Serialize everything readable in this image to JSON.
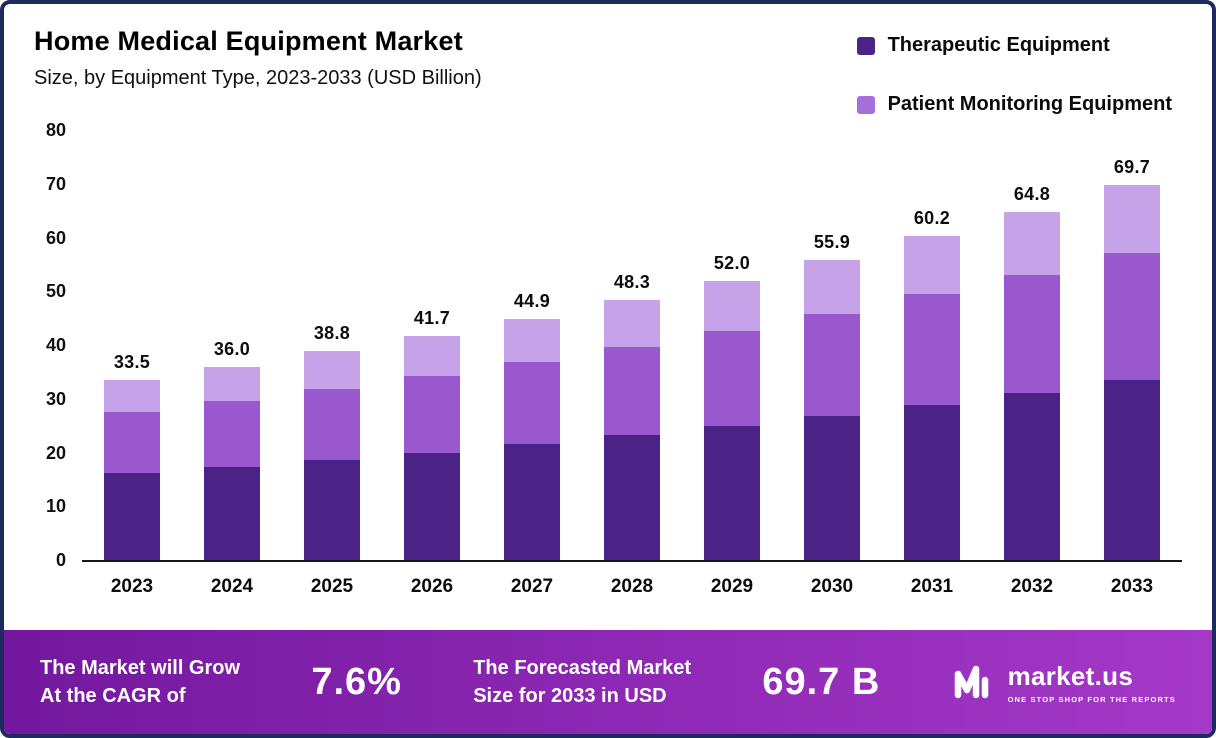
{
  "header": {
    "title": "Home Medical Equipment Market",
    "subtitle": "Size, by Equipment Type, 2023-2033 (USD Billion)"
  },
  "legend": [
    {
      "label": "Therapeutic Equipment",
      "color": "#4b2286"
    },
    {
      "label": "Patient Monitoring Equipment",
      "color": "#a76fdb"
    }
  ],
  "chart_data": {
    "type": "bar",
    "subtype": "stacked",
    "categories": [
      "2023",
      "2024",
      "2025",
      "2026",
      "2027",
      "2028",
      "2029",
      "2030",
      "2031",
      "2032",
      "2033"
    ],
    "totals": [
      "33.5",
      "36.0",
      "38.8",
      "41.7",
      "44.9",
      "48.3",
      "52.0",
      "55.9",
      "60.2",
      "64.8",
      "69.7"
    ],
    "series": [
      {
        "name": "Therapeutic Equipment",
        "color": "#4b2286",
        "values": [
          16.1,
          17.3,
          18.6,
          20.0,
          21.6,
          23.2,
          25.0,
          26.8,
          28.9,
          31.1,
          33.5
        ]
      },
      {
        "name": "Patient Monitoring Equipment",
        "color": "#9a58cf",
        "values": [
          11.4,
          12.2,
          13.2,
          14.2,
          15.3,
          16.4,
          17.7,
          19.0,
          20.5,
          22.0,
          23.7
        ]
      },
      {
        "name": "",
        "color": "#c6a3e8",
        "values": [
          6.0,
          6.5,
          7.0,
          7.5,
          8.0,
          8.7,
          9.3,
          10.1,
          10.8,
          11.7,
          12.5
        ]
      }
    ],
    "title": "Home Medical Equipment Market Size, by Equipment Type, 2023-2033 (USD Billion)",
    "xlabel": "",
    "ylabel": "",
    "ylim": [
      0,
      80
    ],
    "yticks": [
      0,
      10,
      20,
      30,
      40,
      50,
      60,
      70,
      80
    ],
    "grid": false,
    "legend_position": "top-right"
  },
  "banner": {
    "cagr_line1": "The Market will Grow",
    "cagr_line2": "At the CAGR of",
    "cagr_value": "7.6%",
    "forecast_line1": "The Forecasted Market",
    "forecast_line2": "Size for 2033 in USD",
    "forecast_value": "69.7 B",
    "brand": {
      "name": "market.us",
      "tagline": "ONE STOP SHOP FOR THE REPORTS"
    }
  },
  "colors": {
    "frame_border": "#1e2a5e",
    "banner_gradient_from": "#73189e",
    "banner_gradient_to": "#a538c8",
    "axis_line": "#161616",
    "text": "#0c0c0c"
  }
}
